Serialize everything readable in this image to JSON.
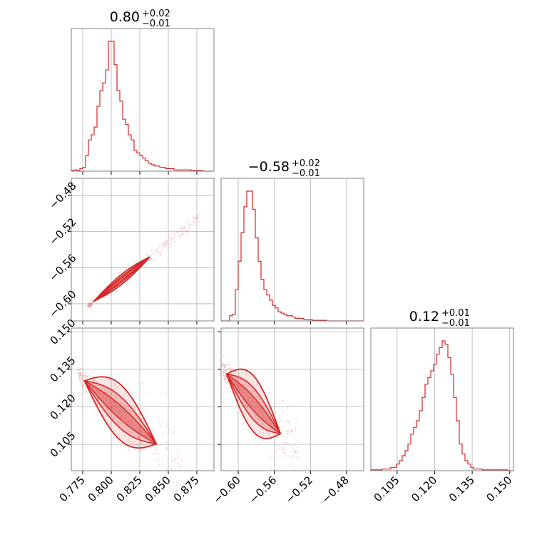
{
  "chart_data": {
    "type": "corner",
    "colors": {
      "series": "#d62728",
      "grid": "#b0b0b0",
      "frame": "#808080"
    },
    "grid": true,
    "parameters": [
      {
        "index": 0,
        "title_value": "0.80",
        "title_plus": "+0.02",
        "title_minus": "−0.01",
        "range": [
          0.765,
          0.89
        ],
        "ticks": [
          "0.775",
          "0.800",
          "0.825",
          "0.850",
          "0.875"
        ],
        "tick_values": [
          0.775,
          0.8,
          0.825,
          0.85,
          0.875
        ]
      },
      {
        "index": 1,
        "title_value": "−0.58",
        "title_plus": "+0.02",
        "title_minus": "−0.01",
        "range": [
          -0.619,
          -0.461
        ],
        "ticks": [
          "−0.60",
          "−0.56",
          "−0.52",
          "−0.48"
        ],
        "tick_values": [
          -0.6,
          -0.56,
          -0.52,
          -0.48
        ]
      },
      {
        "index": 2,
        "title_value": "0.12",
        "title_plus": "+0.01",
        "title_minus": "−0.01",
        "range": [
          0.0945,
          0.1515
        ],
        "ticks": [
          "0.105",
          "0.120",
          "0.135",
          "0.150"
        ],
        "tick_values": [
          0.105,
          0.12,
          0.135,
          0.15
        ]
      }
    ],
    "histograms": [
      [
        0.5,
        1,
        0.5,
        2,
        3,
        12,
        24,
        28,
        34,
        50,
        62,
        68,
        78,
        100,
        100,
        82,
        62,
        54,
        40,
        36,
        28,
        24,
        16,
        14,
        12,
        10,
        8,
        6,
        5,
        4,
        4,
        3,
        3,
        2,
        2,
        2,
        1,
        1,
        1,
        1,
        1,
        1,
        0.5,
        0.5,
        0.5,
        0.5,
        0,
        0,
        0,
        0
      ],
      [
        0,
        0,
        0,
        4,
        5,
        24,
        46,
        68,
        88,
        100,
        100,
        86,
        64,
        46,
        32,
        24,
        20,
        16,
        12,
        10,
        7,
        6,
        5,
        4,
        4,
        3,
        2,
        2,
        2,
        1,
        1,
        1,
        0.5,
        0.5,
        0.5,
        0.5,
        0.5,
        0,
        0,
        0,
        0,
        0,
        0,
        0,
        0,
        0,
        0,
        0,
        0,
        0
      ],
      [
        0.5,
        0.5,
        0.5,
        0.5,
        1,
        1,
        1,
        2,
        2,
        4,
        6,
        9,
        12,
        16,
        22,
        26,
        30,
        36,
        44,
        52,
        56,
        60,
        64,
        70,
        74,
        78,
        76,
        68,
        58,
        44,
        30,
        16,
        10,
        6,
        4,
        2,
        1,
        1,
        1,
        0.5,
        0.5,
        0.5,
        0.5,
        0.5,
        0.5,
        0.5,
        0.5,
        0.5,
        0,
        0
      ]
    ],
    "pairs": [
      {
        "x": 0,
        "y": 1,
        "slope": 1.0,
        "intercept": -1.382,
        "x_range": [
          0.78,
          0.878
        ],
        "spread": 0.002
      },
      {
        "x": 0,
        "y": 2,
        "slope": -0.4,
        "intercept": 0.441,
        "x_range": [
          0.772,
          0.862
        ],
        "spread": 0.004
      },
      {
        "x": 1,
        "y": 2,
        "slope": -0.4,
        "intercept": -0.112,
        "x_range": [
          -0.617,
          -0.532
        ],
        "spread": 0.004
      }
    ]
  }
}
